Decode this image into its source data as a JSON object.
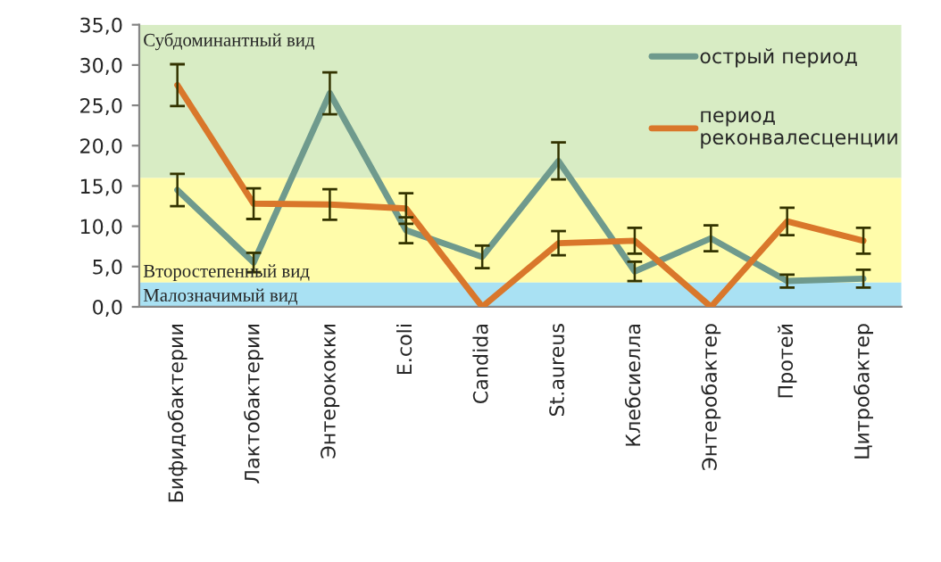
{
  "chart_data": {
    "type": "line",
    "categories": [
      "Бифидобактерии",
      "Лактобактерии",
      "Энтерококки",
      "E.coli",
      "Candida",
      "St.aureus",
      "Клебсиелла",
      "Энтеробактер",
      "Протей",
      "Цитробактер"
    ],
    "series": [
      {
        "name": "острый период",
        "color": "#6f9a8d",
        "values": [
          14.5,
          5.5,
          26.5,
          9.5,
          6.2,
          18.1,
          4.4,
          8.5,
          3.2,
          3.5
        ],
        "errors": [
          2.0,
          1.2,
          2.6,
          1.6,
          1.4,
          2.3,
          1.2,
          1.6,
          0.8,
          1.1
        ]
      },
      {
        "name": "период\nреконвалесценции",
        "color": "#d9772b",
        "values": [
          27.5,
          12.8,
          12.7,
          12.2,
          0,
          7.9,
          8.2,
          0,
          10.6,
          8.2
        ],
        "errors": [
          2.6,
          1.9,
          1.9,
          1.9,
          null,
          1.5,
          1.6,
          null,
          1.7,
          1.6
        ]
      }
    ],
    "ylim": [
      0,
      35
    ],
    "yticks": [
      {
        "value": 0,
        "label": "0,0"
      },
      {
        "value": 5,
        "label": "5,0"
      },
      {
        "value": 10,
        "label": "10,0"
      },
      {
        "value": 15,
        "label": "15,0"
      },
      {
        "value": 20,
        "label": "20,0"
      },
      {
        "value": 25,
        "label": "25,0"
      },
      {
        "value": 30,
        "label": "30,0"
      },
      {
        "value": 35,
        "label": "35,0"
      }
    ],
    "bands": [
      {
        "axis": "y",
        "from": 16,
        "to": 35,
        "label": "Субдоминантный вид",
        "color": "#d8ecc4"
      },
      {
        "axis": "y",
        "from": 3,
        "to": 16,
        "label": "Второстепенный вид",
        "color": "#fffcaa"
      },
      {
        "axis": "y",
        "from": 0,
        "to": 3,
        "label": "Малозначимый вид",
        "color": "#a9e1f3"
      }
    ],
    "grid": false,
    "legend": "top right",
    "line_style": "solid",
    "marker": "none"
  }
}
